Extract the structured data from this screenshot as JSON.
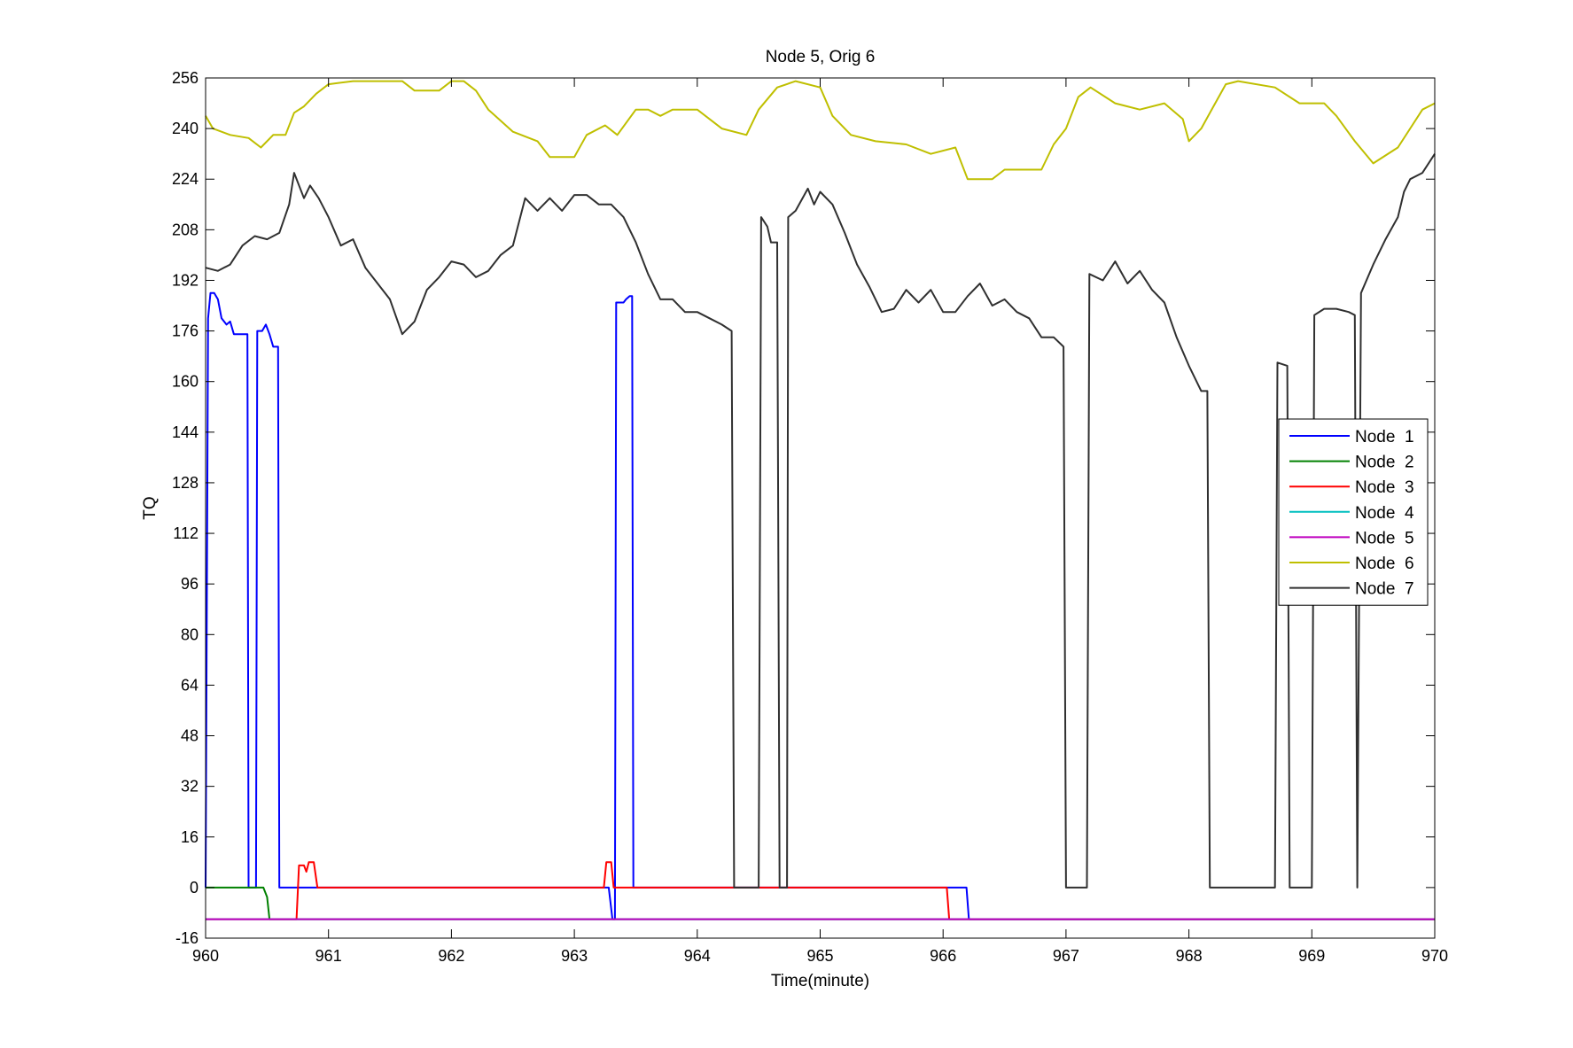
{
  "chart_data": {
    "type": "line",
    "title": "Node 5, Orig 6",
    "xlabel": "Time(minute)",
    "ylabel": "TQ",
    "xlim": [
      960,
      970
    ],
    "ylim": [
      -16,
      256
    ],
    "xticks": [
      960,
      961,
      962,
      963,
      964,
      965,
      966,
      967,
      968,
      969,
      970
    ],
    "yticks": [
      -16,
      0,
      16,
      32,
      48,
      64,
      80,
      96,
      112,
      128,
      144,
      160,
      176,
      192,
      208,
      224,
      240,
      256
    ],
    "grid": false,
    "legend_position": "right",
    "series": [
      {
        "name": "Node  1",
        "color": "#0000ff",
        "points": [
          [
            960.0,
            0
          ],
          [
            960.02,
            180
          ],
          [
            960.04,
            188
          ],
          [
            960.07,
            188
          ],
          [
            960.1,
            186
          ],
          [
            960.13,
            180
          ],
          [
            960.17,
            178
          ],
          [
            960.2,
            179
          ],
          [
            960.23,
            175
          ],
          [
            960.34,
            175
          ],
          [
            960.35,
            0
          ],
          [
            960.41,
            0
          ],
          [
            960.42,
            176
          ],
          [
            960.46,
            176
          ],
          [
            960.49,
            178
          ],
          [
            960.52,
            175
          ],
          [
            960.55,
            171
          ],
          [
            960.59,
            171
          ],
          [
            960.6,
            0
          ],
          [
            963.28,
            0
          ],
          [
            963.31,
            -10
          ],
          [
            963.33,
            -10
          ],
          [
            963.34,
            185
          ],
          [
            963.4,
            185
          ],
          [
            963.42,
            186
          ],
          [
            963.45,
            187
          ],
          [
            963.47,
            187
          ],
          [
            963.48,
            0
          ],
          [
            966.19,
            0
          ],
          [
            966.21,
            -10
          ],
          [
            970.0,
            -10
          ]
        ]
      },
      {
        "name": "Node  2",
        "color": "#008000",
        "points": [
          [
            960.0,
            0
          ],
          [
            960.47,
            0
          ],
          [
            960.5,
            -3
          ],
          [
            960.52,
            -10
          ],
          [
            970.0,
            -10
          ]
        ]
      },
      {
        "name": "Node  3",
        "color": "#ff0000",
        "points": [
          [
            960.0,
            -10
          ],
          [
            960.74,
            -10
          ],
          [
            960.76,
            7
          ],
          [
            960.8,
            7
          ],
          [
            960.82,
            5
          ],
          [
            960.84,
            8
          ],
          [
            960.88,
            8
          ],
          [
            960.91,
            0
          ],
          [
            963.24,
            0
          ],
          [
            963.26,
            8
          ],
          [
            963.3,
            8
          ],
          [
            963.32,
            0
          ],
          [
            966.03,
            0
          ],
          [
            966.05,
            -10
          ],
          [
            970.0,
            -10
          ]
        ]
      },
      {
        "name": "Node  4",
        "color": "#00bfbf",
        "points": [
          [
            960.0,
            -10
          ],
          [
            970.0,
            -10
          ]
        ]
      },
      {
        "name": "Node  5",
        "color": "#bf00bf",
        "points": [
          [
            960.0,
            -10
          ],
          [
            970.0,
            -10
          ]
        ]
      },
      {
        "name": "Node  6",
        "color": "#bfbf00",
        "points": [
          [
            960.0,
            244
          ],
          [
            960.06,
            240
          ],
          [
            960.2,
            238
          ],
          [
            960.35,
            237
          ],
          [
            960.45,
            234
          ],
          [
            960.55,
            238
          ],
          [
            960.65,
            238
          ],
          [
            960.72,
            245
          ],
          [
            960.8,
            247
          ],
          [
            960.9,
            251
          ],
          [
            961.0,
            254
          ],
          [
            961.2,
            255
          ],
          [
            961.6,
            255
          ],
          [
            961.7,
            252
          ],
          [
            961.9,
            252
          ],
          [
            962.0,
            255
          ],
          [
            962.1,
            255
          ],
          [
            962.2,
            252
          ],
          [
            962.3,
            246
          ],
          [
            962.5,
            239
          ],
          [
            962.7,
            236
          ],
          [
            962.8,
            231
          ],
          [
            963.0,
            231
          ],
          [
            963.1,
            238
          ],
          [
            963.25,
            241
          ],
          [
            963.35,
            238
          ],
          [
            963.5,
            246
          ],
          [
            963.6,
            246
          ],
          [
            963.7,
            244
          ],
          [
            963.8,
            246
          ],
          [
            964.0,
            246
          ],
          [
            964.2,
            240
          ],
          [
            964.4,
            238
          ],
          [
            964.5,
            246
          ],
          [
            964.65,
            253
          ],
          [
            964.8,
            255
          ],
          [
            965.0,
            253
          ],
          [
            965.1,
            244
          ],
          [
            965.25,
            238
          ],
          [
            965.45,
            236
          ],
          [
            965.7,
            235
          ],
          [
            965.9,
            232
          ],
          [
            966.1,
            234
          ],
          [
            966.2,
            224
          ],
          [
            966.4,
            224
          ],
          [
            966.5,
            227
          ],
          [
            966.8,
            227
          ],
          [
            966.9,
            235
          ],
          [
            967.0,
            240
          ],
          [
            967.1,
            250
          ],
          [
            967.2,
            253
          ],
          [
            967.4,
            248
          ],
          [
            967.6,
            246
          ],
          [
            967.8,
            248
          ],
          [
            967.95,
            243
          ],
          [
            968.0,
            236
          ],
          [
            968.1,
            240
          ],
          [
            968.2,
            247
          ],
          [
            968.3,
            254
          ],
          [
            968.4,
            255
          ],
          [
            968.7,
            253
          ],
          [
            968.9,
            248
          ],
          [
            969.1,
            248
          ],
          [
            969.2,
            244
          ],
          [
            969.35,
            236
          ],
          [
            969.5,
            229
          ],
          [
            969.7,
            234
          ],
          [
            969.9,
            246
          ],
          [
            970.0,
            248
          ]
        ]
      },
      {
        "name": "Node  7",
        "color": "#303030",
        "points": [
          [
            960.0,
            196
          ],
          [
            960.1,
            195
          ],
          [
            960.2,
            197
          ],
          [
            960.3,
            203
          ],
          [
            960.4,
            206
          ],
          [
            960.5,
            205
          ],
          [
            960.6,
            207
          ],
          [
            960.68,
            216
          ],
          [
            960.72,
            226
          ],
          [
            960.8,
            218
          ],
          [
            960.85,
            222
          ],
          [
            960.92,
            218
          ],
          [
            961.0,
            212
          ],
          [
            961.1,
            203
          ],
          [
            961.2,
            205
          ],
          [
            961.3,
            196
          ],
          [
            961.5,
            186
          ],
          [
            961.6,
            175
          ],
          [
            961.7,
            179
          ],
          [
            961.8,
            189
          ],
          [
            961.9,
            193
          ],
          [
            962.0,
            198
          ],
          [
            962.1,
            197
          ],
          [
            962.2,
            193
          ],
          [
            962.3,
            195
          ],
          [
            962.4,
            200
          ],
          [
            962.5,
            203
          ],
          [
            962.6,
            218
          ],
          [
            962.7,
            214
          ],
          [
            962.8,
            218
          ],
          [
            962.9,
            214
          ],
          [
            963.0,
            219
          ],
          [
            963.1,
            219
          ],
          [
            963.2,
            216
          ],
          [
            963.3,
            216
          ],
          [
            963.4,
            212
          ],
          [
            963.5,
            204
          ],
          [
            963.6,
            194
          ],
          [
            963.7,
            186
          ],
          [
            963.8,
            186
          ],
          [
            963.9,
            182
          ],
          [
            964.0,
            182
          ],
          [
            964.1,
            180
          ],
          [
            964.2,
            178
          ],
          [
            964.28,
            176
          ],
          [
            964.3,
            0
          ],
          [
            964.5,
            0
          ],
          [
            964.52,
            212
          ],
          [
            964.57,
            209
          ],
          [
            964.6,
            204
          ],
          [
            964.65,
            204
          ],
          [
            964.67,
            0
          ],
          [
            964.73,
            0
          ],
          [
            964.74,
            212
          ],
          [
            964.8,
            214
          ],
          [
            964.9,
            221
          ],
          [
            964.95,
            216
          ],
          [
            965.0,
            220
          ],
          [
            965.1,
            216
          ],
          [
            965.2,
            207
          ],
          [
            965.3,
            197
          ],
          [
            965.4,
            190
          ],
          [
            965.5,
            182
          ],
          [
            965.6,
            183
          ],
          [
            965.7,
            189
          ],
          [
            965.8,
            185
          ],
          [
            965.9,
            189
          ],
          [
            966.0,
            182
          ],
          [
            966.1,
            182
          ],
          [
            966.2,
            187
          ],
          [
            966.3,
            191
          ],
          [
            966.4,
            184
          ],
          [
            966.5,
            186
          ],
          [
            966.6,
            182
          ],
          [
            966.7,
            180
          ],
          [
            966.8,
            174
          ],
          [
            966.9,
            174
          ],
          [
            966.98,
            171
          ],
          [
            967.0,
            0
          ],
          [
            967.17,
            0
          ],
          [
            967.19,
            194
          ],
          [
            967.3,
            192
          ],
          [
            967.4,
            198
          ],
          [
            967.5,
            191
          ],
          [
            967.6,
            195
          ],
          [
            967.7,
            189
          ],
          [
            967.8,
            185
          ],
          [
            967.9,
            174
          ],
          [
            968.0,
            165
          ],
          [
            968.1,
            157
          ],
          [
            968.15,
            157
          ],
          [
            968.17,
            0
          ],
          [
            968.7,
            0
          ],
          [
            968.72,
            166
          ],
          [
            968.8,
            165
          ],
          [
            968.82,
            0
          ],
          [
            969.0,
            0
          ],
          [
            969.02,
            181
          ],
          [
            969.1,
            183
          ],
          [
            969.2,
            183
          ],
          [
            969.3,
            182
          ],
          [
            969.35,
            181
          ],
          [
            969.37,
            0
          ],
          [
            969.4,
            188
          ],
          [
            969.5,
            197
          ],
          [
            969.6,
            205
          ],
          [
            969.7,
            212
          ],
          [
            969.75,
            220
          ],
          [
            969.8,
            224
          ],
          [
            969.9,
            226
          ],
          [
            970.0,
            232
          ]
        ]
      }
    ]
  }
}
